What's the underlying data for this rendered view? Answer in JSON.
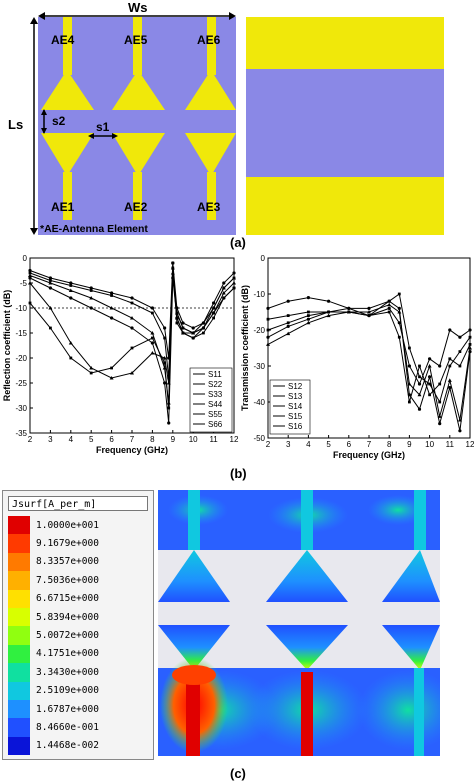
{
  "panel_a": {
    "dim_ws": "Ws",
    "dim_ls": "Ls",
    "dim_s1": "s1",
    "dim_s2": "s2",
    "elements_top": [
      "AE4",
      "AE5",
      "AE6"
    ],
    "elements_bottom": [
      "AE1",
      "AE2",
      "AE3"
    ],
    "footnote": "*AE-Antenna Element",
    "label": "(a)",
    "colors": {
      "substrate": "#8a88e6",
      "metal": "#f0e80a"
    }
  },
  "panel_b": {
    "label": "(b)",
    "chart_data": [
      {
        "type": "line",
        "xlabel": "Frequency (GHz)",
        "ylabel": "Reflection coefficient (dB)",
        "xlim": [
          2,
          12
        ],
        "ylim": [
          -35,
          0
        ],
        "xticks": [
          "2",
          "3",
          "4",
          "5",
          "6",
          "7",
          "8",
          "9",
          "10",
          "11",
          "12"
        ],
        "yticks": [
          "0",
          "-5",
          "-10",
          "-15",
          "-20",
          "-25",
          "-30",
          "-35"
        ],
        "reference_line": -10,
        "legend_position": "bottom-right",
        "x": [
          2,
          3,
          4,
          5,
          6,
          7,
          8,
          8.6,
          8.8,
          9,
          9.2,
          9.5,
          10,
          10.5,
          11,
          11.5,
          12
        ],
        "series": [
          {
            "name": "S11",
            "values": [
              -2.5,
              -4,
              -5,
              -6,
              -7,
              -8,
              -10,
              -14,
              -20,
              -1,
              -10,
              -13,
              -14,
              -13,
              -9,
              -5,
              -3
            ]
          },
          {
            "name": "S22",
            "values": [
              -3,
              -4.5,
              -5.5,
              -6.5,
              -7.5,
              -9,
              -11,
              -16,
              -24,
              -2,
              -11,
              -14,
              -15,
              -14,
              -10,
              -6,
              -4
            ]
          },
          {
            "name": "S33",
            "values": [
              -3.5,
              -5,
              -6.5,
              -8,
              -10,
              -12,
              -15,
              -22,
              -29,
              -3,
              -12,
              -15,
              -15,
              -14,
              -11,
              -7,
              -5
            ]
          },
          {
            "name": "S44",
            "values": [
              -4,
              -6,
              -8,
              -10,
              -12,
              -14,
              -17,
              -25,
              -33,
              -4,
              -12,
              -15,
              -16,
              -14,
              -11,
              -8,
              -6
            ]
          },
          {
            "name": "S55",
            "values": [
              -9,
              -14,
              -20,
              -23,
              -22,
              -18,
              -16,
              -21,
              -30,
              -1,
              -13,
              -15,
              -16,
              -15,
              -12,
              -8,
              -6
            ]
          },
          {
            "name": "S66",
            "values": [
              -5,
              -10,
              -17,
              -22,
              -24,
              -23,
              -19,
              -20,
              -25,
              -2,
              -11,
              -14,
              -15,
              -13,
              -10,
              -6,
              -4
            ]
          }
        ]
      },
      {
        "type": "line",
        "xlabel": "Frequency (GHz)",
        "ylabel": "Transmission coefficient (dB)",
        "xlim": [
          2,
          12
        ],
        "ylim": [
          -50,
          0
        ],
        "xticks": [
          "2",
          "3",
          "4",
          "5",
          "6",
          "7",
          "8",
          "9",
          "10",
          "11",
          "12"
        ],
        "yticks": [
          "0",
          "-10",
          "-20",
          "-30",
          "-40",
          "-50"
        ],
        "legend_position": "bottom-left",
        "x": [
          2,
          3,
          4,
          5,
          6,
          7,
          8,
          8.5,
          9,
          9.5,
          10,
          10.5,
          11,
          11.5,
          12
        ],
        "series": [
          {
            "name": "S12",
            "values": [
              -14,
              -12,
              -11,
              -12,
              -14,
              -16,
              -14,
              -18,
              -30,
              -35,
              -28,
              -30,
              -20,
              -22,
              -20
            ]
          },
          {
            "name": "S13",
            "values": [
              -20,
              -18,
              -16,
              -15,
              -15,
              -16,
              -12,
              -10,
              -25,
              -33,
              -35,
              -40,
              -30,
              -26,
              -22
            ]
          },
          {
            "name": "S14",
            "values": [
              -24,
              -21,
              -18,
              -16,
              -15,
              -15,
              -13,
              -15,
              -35,
              -38,
              -30,
              -44,
              -34,
              -45,
              -25
            ]
          },
          {
            "name": "S15",
            "values": [
              -22,
              -19,
              -17,
              -15,
              -14,
              -14,
              -12,
              -14,
              -38,
              -42,
              -33,
              -46,
              -36,
              -48,
              -26
            ]
          },
          {
            "name": "S16",
            "values": [
              -17,
              -16,
              -15,
              -15,
              -15,
              -16,
              -15,
              -22,
              -40,
              -30,
              -38,
              -35,
              -28,
              -30,
              -24
            ]
          }
        ]
      }
    ]
  },
  "panel_c": {
    "label": "(c)",
    "colorbar_title": "Jsurf[A_per_m]",
    "colorbar_values": [
      "1.0000e+001",
      "9.1679e+000",
      "8.3357e+000",
      "7.5036e+000",
      "6.6715e+000",
      "5.8394e+000",
      "5.0072e+000",
      "4.1751e+000",
      "3.3430e+000",
      "2.5109e+000",
      "1.6787e+000",
      "8.4660e-001",
      "1.4468e-002"
    ],
    "colorbar_colors": [
      "#e00000",
      "#ff3a00",
      "#ff7a00",
      "#ffb000",
      "#ffe000",
      "#d8ff00",
      "#90ff10",
      "#30f040",
      "#10e0a0",
      "#10c8e0",
      "#1e90ff",
      "#2050ff",
      "#0a14d8"
    ]
  }
}
